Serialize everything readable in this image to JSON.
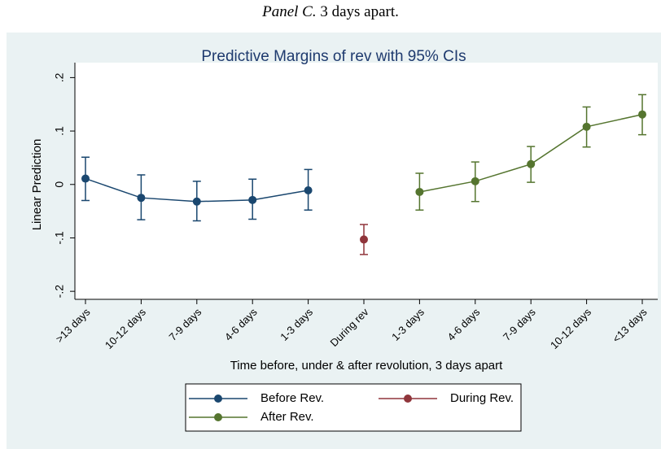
{
  "caption": {
    "label": "Panel C.",
    "text": "3 days apart."
  },
  "chart_data": {
    "type": "errorbar-line",
    "title": "Predictive Margins of rev with 95% CIs",
    "y_label": "Linear Prediction",
    "x_label": "Time before, under & after revolution, 3 days apart",
    "categories": [
      ">13 days",
      "10-12 days",
      "7-9 days",
      "4-6 days",
      "1-3 days",
      "During rev",
      "1-3 days",
      "4-6 days",
      "7-9 days",
      "10-12 days",
      "<13 days"
    ],
    "ylim": [
      -0.215,
      0.228
    ],
    "yticks": [
      {
        "value": -0.2,
        "label": "-.2"
      },
      {
        "value": -0.1,
        "label": "-.1"
      },
      0,
      {
        "value": 0.1,
        "label": ".1"
      },
      {
        "value": 0.2,
        "label": ".2"
      }
    ],
    "series": [
      {
        "name": "Before Rev.",
        "color": "#1a476f",
        "values": [
          0.011,
          -0.025,
          -0.032,
          -0.029,
          -0.011,
          null,
          null,
          null,
          null,
          null,
          null
        ],
        "lower": [
          -0.03,
          -0.066,
          -0.068,
          -0.065,
          -0.048,
          null,
          null,
          null,
          null,
          null,
          null
        ],
        "upper": [
          0.051,
          0.018,
          0.006,
          0.01,
          0.028,
          null,
          null,
          null,
          null,
          null,
          null
        ]
      },
      {
        "name": "During Rev.",
        "color": "#90353b",
        "values": [
          null,
          null,
          null,
          null,
          null,
          -0.103,
          null,
          null,
          null,
          null,
          null
        ],
        "lower": [
          null,
          null,
          null,
          null,
          null,
          -0.131,
          null,
          null,
          null,
          null,
          null
        ],
        "upper": [
          null,
          null,
          null,
          null,
          null,
          -0.075,
          null,
          null,
          null,
          null,
          null
        ]
      },
      {
        "name": "After Rev.",
        "color": "#55752f",
        "values": [
          null,
          null,
          null,
          null,
          null,
          null,
          -0.014,
          0.006,
          0.038,
          0.108,
          0.131
        ],
        "lower": [
          null,
          null,
          null,
          null,
          null,
          null,
          -0.048,
          -0.032,
          0.004,
          0.07,
          0.093
        ],
        "upper": [
          null,
          null,
          null,
          null,
          null,
          null,
          0.021,
          0.042,
          0.071,
          0.145,
          0.168
        ]
      }
    ]
  }
}
